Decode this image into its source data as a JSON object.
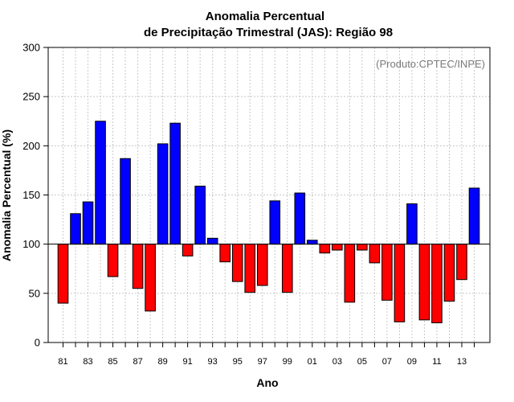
{
  "chart_data": {
    "type": "bar",
    "title_line1": "Anomalia Percentual",
    "title_line2": "de Precipitação Trimestral (JAS): Região 98",
    "xlabel": "Ano",
    "ylabel": "Anomalia Percentual (%)",
    "credit": "(Produto:CPTEC/INPE)",
    "ylim": [
      0,
      300
    ],
    "baseline": 100,
    "yticks": [
      0,
      50,
      100,
      150,
      200,
      250,
      300
    ],
    "above_color": "#0000ff",
    "below_color": "#ff0000",
    "grid": true,
    "categories": [
      "81",
      "82",
      "83",
      "84",
      "85",
      "86",
      "87",
      "88",
      "89",
      "90",
      "91",
      "92",
      "93",
      "94",
      "95",
      "96",
      "97",
      "98",
      "99",
      "00",
      "01",
      "02",
      "03",
      "04",
      "05",
      "06",
      "07",
      "08",
      "09",
      "10",
      "11",
      "12",
      "13",
      "14"
    ],
    "xtick_labels": [
      "81",
      "83",
      "85",
      "87",
      "89",
      "91",
      "93",
      "95",
      "97",
      "99",
      "01",
      "03",
      "05",
      "07",
      "09",
      "11",
      "13"
    ],
    "values": [
      40,
      131,
      143,
      225,
      67,
      187,
      55,
      32,
      202,
      223,
      88,
      159,
      106,
      82,
      62,
      51,
      58,
      144,
      51,
      152,
      104,
      91,
      94,
      41,
      94,
      81,
      43,
      21,
      141,
      23,
      20,
      42,
      64,
      157
    ]
  }
}
